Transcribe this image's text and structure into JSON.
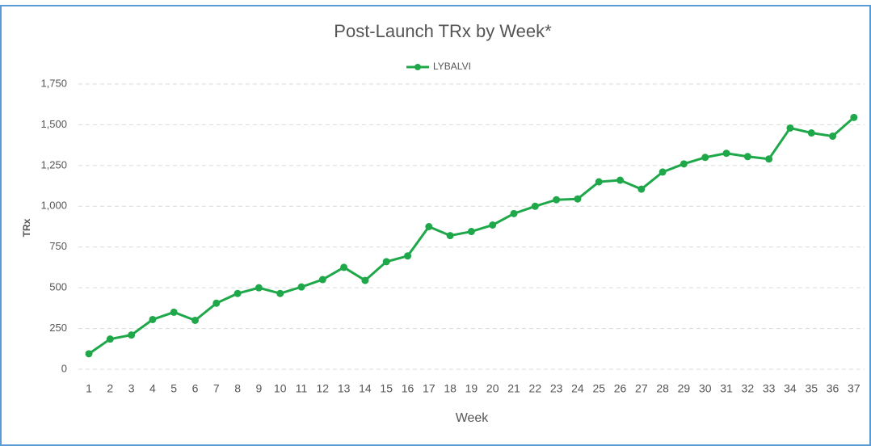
{
  "chart_data": {
    "type": "line",
    "title": "Post-Launch TRx by Week*",
    "x_label": "Week",
    "y_label": "TRx",
    "categories": [
      "1",
      "2",
      "3",
      "4",
      "5",
      "6",
      "7",
      "8",
      "9",
      "10",
      "11",
      "12",
      "13",
      "14",
      "15",
      "16",
      "17",
      "18",
      "19",
      "20",
      "21",
      "22",
      "23",
      "24",
      "25",
      "26",
      "27",
      "28",
      "29",
      "30",
      "31",
      "32",
      "33",
      "34",
      "35",
      "36",
      "37"
    ],
    "series": [
      {
        "name": "LYBALVI",
        "color": "#1fa84a",
        "values": [
          95,
          185,
          210,
          305,
          350,
          300,
          405,
          465,
          500,
          465,
          505,
          550,
          625,
          545,
          660,
          695,
          875,
          820,
          845,
          885,
          955,
          1000,
          1040,
          1045,
          1150,
          1160,
          1105,
          1210,
          1260,
          1300,
          1325,
          1305,
          1290,
          1480,
          1450,
          1430,
          1545
        ]
      }
    ],
    "ylim": [
      0,
      1750
    ],
    "yticks": [
      0,
      250,
      500,
      750,
      {
        "value": 1000,
        "label": "1,000"
      },
      {
        "value": 1250,
        "label": "1,250"
      },
      {
        "value": 1500,
        "label": "1,500"
      },
      {
        "value": 1750,
        "label": "1,750"
      }
    ],
    "grid": true,
    "legend": "top"
  }
}
